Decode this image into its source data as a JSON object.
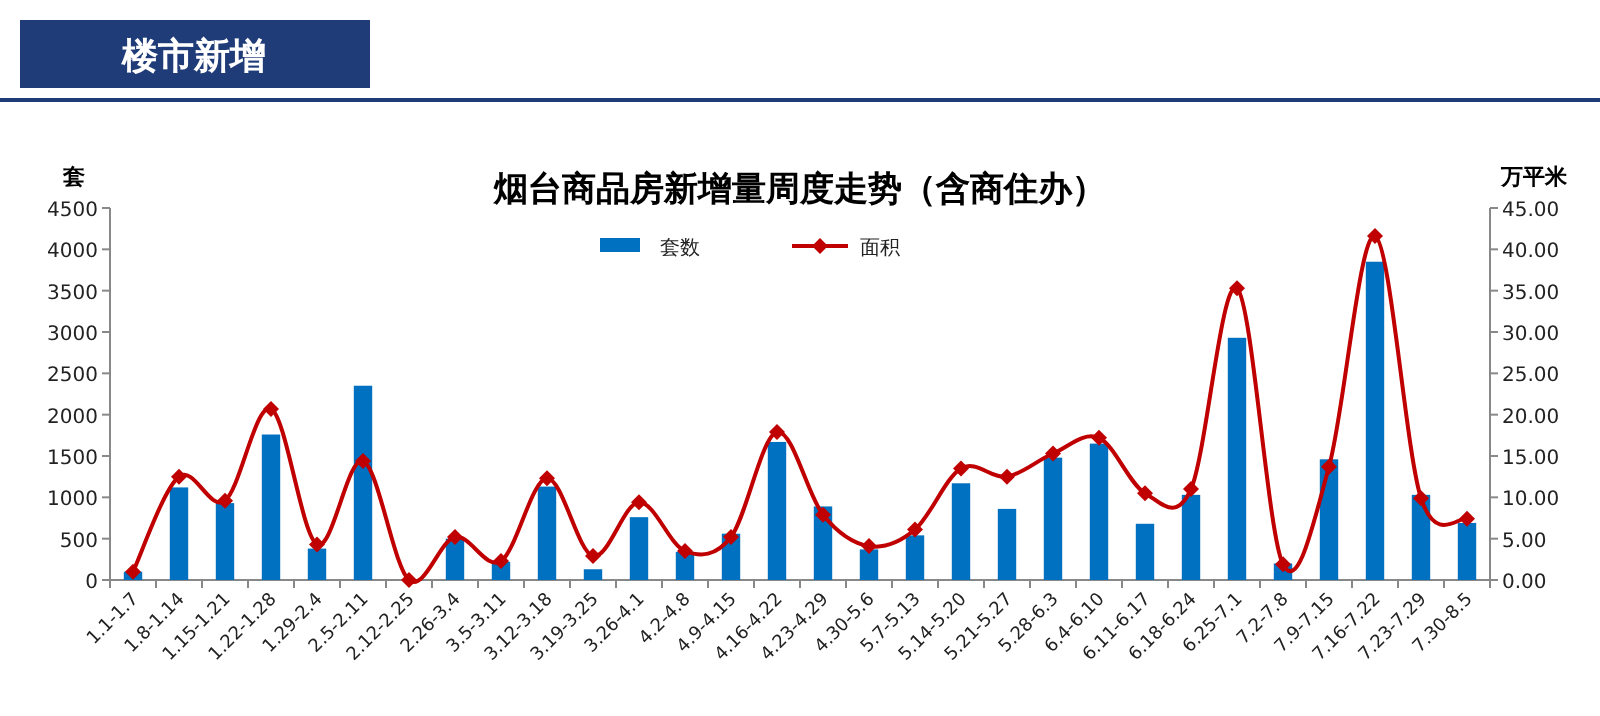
{
  "chart_data": {
    "type": "bar",
    "title": "烟台商品房新增量周度走势（含商住办）",
    "annotations": [
      "楼市新增"
    ],
    "ylabel": "套",
    "y2label": "万平米",
    "categories": [
      "1.1-1.7",
      "1.8-1.14",
      "1.15-1.21",
      "1.22-1.28",
      "1.29-2.4",
      "2.5-2.11",
      "2.12-2.25",
      "2.26-3.4",
      "3.5-3.11",
      "3.12-3.18",
      "3.19-3.25",
      "3.26-4.1",
      "4.2-4.8",
      "4.9-4.15",
      "4.16-4.22",
      "4.23-4.29",
      "4.30-5.6",
      "5.7-5.13",
      "5.14-5.20",
      "5.21-5.27",
      "5.28-6.3",
      "6.4-6.10",
      "6.11-6.17",
      "6.18-6.24",
      "6.25-7.1",
      "7.2-7.8",
      "7.9-7.15",
      "7.16-7.22",
      "7.23-7.29",
      "7.30-8.5"
    ],
    "series": [
      {
        "name": "套数",
        "color": "#0070c0",
        "values": [
          100,
          1120,
          930,
          1760,
          380,
          2350,
          0,
          500,
          220,
          1130,
          130,
          760,
          340,
          560,
          1670,
          890,
          370,
          540,
          1170,
          860,
          1480,
          1650,
          680,
          1030,
          2930,
          200,
          1460,
          3850,
          1030,
          690
        ]
      },
      {
        "name": "面积",
        "type": "line",
        "axis": "y2",
        "color": "#c00000",
        "marker": "diamond",
        "values": [
          1.0,
          12.5,
          9.6,
          20.7,
          4.3,
          14.4,
          0.0,
          5.2,
          2.3,
          12.3,
          2.9,
          9.4,
          3.5,
          5.2,
          17.9,
          7.9,
          4.1,
          6.1,
          13.5,
          12.5,
          15.3,
          17.2,
          10.5,
          11.0,
          35.3,
          1.9,
          13.7,
          41.6,
          9.9,
          7.4
        ]
      }
    ],
    "ylim": [
      0,
      4500
    ],
    "yticks": [
      0,
      500,
      1000,
      1500,
      2000,
      2500,
      3000,
      3500,
      4000,
      4500
    ],
    "y2lim": [
      0,
      45
    ],
    "y2ticks": [
      {
        "value": 0,
        "label": "0.00"
      },
      {
        "value": 5,
        "label": "5.00"
      },
      {
        "value": 10,
        "label": "10.00"
      },
      {
        "value": 15,
        "label": "15.00"
      },
      {
        "value": 20,
        "label": "20.00"
      },
      {
        "value": 25,
        "label": "25.00"
      },
      {
        "value": 30,
        "label": "30.00"
      },
      {
        "value": 35,
        "label": "35.00"
      },
      {
        "value": 40,
        "label": "40.00"
      },
      {
        "value": 45,
        "label": "45.00"
      }
    ],
    "grid": false,
    "legend": "top"
  }
}
